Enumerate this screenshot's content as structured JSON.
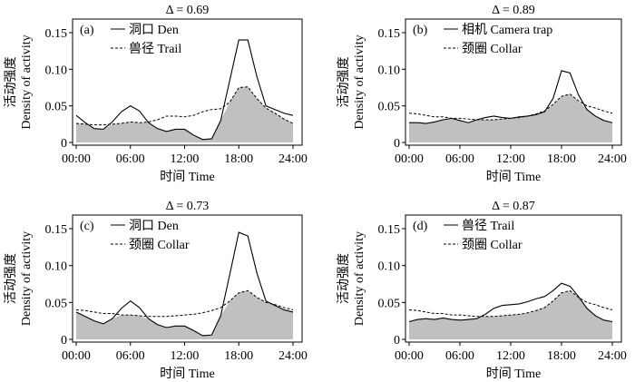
{
  "chart_data": [
    {
      "type": "line",
      "title": "Δ = 0.69",
      "panel_label": "(a)",
      "xlabel": "时间 Time",
      "ylabel_cn": "活动强度",
      "ylabel_en": "Density of activity",
      "xlim": [
        0,
        24
      ],
      "ylim": [
        0,
        0.15
      ],
      "x_ticks": [
        "00:00",
        "06:00",
        "12:00",
        "18:00",
        "24:00"
      ],
      "y_ticks": [
        "0",
        "0.05",
        "0.10",
        "0.15"
      ],
      "legend_placement": "top-left",
      "overlap_fill": "#c0c0c0",
      "x": [
        0,
        1,
        2,
        3,
        4,
        5,
        6,
        7,
        8,
        9,
        10,
        11,
        12,
        13,
        14,
        15,
        16,
        17,
        18,
        19,
        20,
        21,
        22,
        23,
        24
      ],
      "series": [
        {
          "name": "洞口 Den",
          "style": "solid",
          "values": [
            0.037,
            0.027,
            0.019,
            0.018,
            0.028,
            0.042,
            0.05,
            0.043,
            0.027,
            0.019,
            0.015,
            0.018,
            0.018,
            0.01,
            0.004,
            0.005,
            0.03,
            0.085,
            0.14,
            0.14,
            0.09,
            0.05,
            0.045,
            0.04,
            0.037
          ]
        },
        {
          "name": "兽径 Trail",
          "style": "dashed",
          "values": [
            0.026,
            0.025,
            0.024,
            0.024,
            0.025,
            0.026,
            0.028,
            0.027,
            0.028,
            0.031,
            0.036,
            0.036,
            0.035,
            0.037,
            0.042,
            0.045,
            0.046,
            0.055,
            0.075,
            0.076,
            0.06,
            0.047,
            0.04,
            0.032,
            0.026
          ]
        }
      ]
    },
    {
      "type": "line",
      "title": "Δ = 0.89",
      "panel_label": "(b)",
      "xlabel": "时间 Time",
      "ylabel_cn": "活动强度",
      "ylabel_en": "Density of activity",
      "xlim": [
        0,
        24
      ],
      "ylim": [
        0,
        0.15
      ],
      "x_ticks": [
        "00:00",
        "06:00",
        "12:00",
        "18:00",
        "24:00"
      ],
      "y_ticks": [
        "0",
        "0.05",
        "0.10",
        "0.15"
      ],
      "legend_placement": "top-left",
      "overlap_fill": "#c0c0c0",
      "x": [
        0,
        1,
        2,
        3,
        4,
        5,
        6,
        7,
        8,
        9,
        10,
        11,
        12,
        13,
        14,
        15,
        16,
        17,
        18,
        19,
        20,
        21,
        22,
        23,
        24
      ],
      "series": [
        {
          "name": "相机 Camera trap",
          "style": "solid",
          "values": [
            0.027,
            0.027,
            0.026,
            0.028,
            0.031,
            0.033,
            0.03,
            0.027,
            0.031,
            0.034,
            0.036,
            0.034,
            0.033,
            0.035,
            0.036,
            0.038,
            0.042,
            0.06,
            0.098,
            0.095,
            0.065,
            0.045,
            0.036,
            0.03,
            0.027
          ]
        },
        {
          "name": "颈圈 Collar",
          "style": "dashed",
          "values": [
            0.04,
            0.039,
            0.037,
            0.035,
            0.035,
            0.033,
            0.033,
            0.032,
            0.031,
            0.031,
            0.031,
            0.032,
            0.033,
            0.034,
            0.036,
            0.039,
            0.043,
            0.052,
            0.063,
            0.066,
            0.057,
            0.05,
            0.047,
            0.043,
            0.04
          ]
        }
      ]
    },
    {
      "type": "line",
      "title": "Δ = 0.73",
      "panel_label": "(c)",
      "xlabel": "时间 Time",
      "ylabel_cn": "活动强度",
      "ylabel_en": "Density of activity",
      "xlim": [
        0,
        24
      ],
      "ylim": [
        0,
        0.15
      ],
      "x_ticks": [
        "00:00",
        "06:00",
        "12:00",
        "18:00",
        "24:00"
      ],
      "y_ticks": [
        "0",
        "0.05",
        "0.10",
        "0.15"
      ],
      "legend_placement": "top-left",
      "overlap_fill": "#c0c0c0",
      "x": [
        0,
        1,
        2,
        3,
        4,
        5,
        6,
        7,
        8,
        9,
        10,
        11,
        12,
        13,
        14,
        15,
        16,
        17,
        18,
        19,
        20,
        21,
        22,
        23,
        24
      ],
      "series": [
        {
          "name": "洞口 Den",
          "style": "solid",
          "values": [
            0.037,
            0.031,
            0.025,
            0.021,
            0.028,
            0.042,
            0.052,
            0.043,
            0.028,
            0.02,
            0.016,
            0.018,
            0.018,
            0.012,
            0.005,
            0.006,
            0.032,
            0.088,
            0.145,
            0.14,
            0.09,
            0.052,
            0.046,
            0.04,
            0.037
          ]
        },
        {
          "name": "颈圈 Collar",
          "style": "dashed",
          "values": [
            0.04,
            0.039,
            0.037,
            0.035,
            0.035,
            0.033,
            0.033,
            0.032,
            0.031,
            0.031,
            0.031,
            0.032,
            0.033,
            0.034,
            0.036,
            0.039,
            0.043,
            0.052,
            0.063,
            0.066,
            0.057,
            0.05,
            0.047,
            0.043,
            0.04
          ]
        }
      ]
    },
    {
      "type": "line",
      "title": "Δ = 0.87",
      "panel_label": "(d)",
      "xlabel": "时间 Time",
      "ylabel_cn": "活动强度",
      "ylabel_en": "Density of activity",
      "xlim": [
        0,
        24
      ],
      "ylim": [
        0,
        0.15
      ],
      "x_ticks": [
        "00:00",
        "06:00",
        "12:00",
        "18:00",
        "24:00"
      ],
      "y_ticks": [
        "0",
        "0.05",
        "0.10",
        "0.15"
      ],
      "legend_placement": "top-left",
      "overlap_fill": "#c0c0c0",
      "x": [
        0,
        1,
        2,
        3,
        4,
        5,
        6,
        7,
        8,
        9,
        10,
        11,
        12,
        13,
        14,
        15,
        16,
        17,
        18,
        19,
        20,
        21,
        22,
        23,
        24
      ],
      "series": [
        {
          "name": "兽径 Trail",
          "style": "solid",
          "values": [
            0.024,
            0.027,
            0.028,
            0.027,
            0.029,
            0.027,
            0.026,
            0.027,
            0.028,
            0.034,
            0.042,
            0.046,
            0.047,
            0.048,
            0.051,
            0.055,
            0.058,
            0.066,
            0.076,
            0.072,
            0.058,
            0.042,
            0.032,
            0.026,
            0.024
          ]
        },
        {
          "name": "颈圈 Collar",
          "style": "dashed",
          "values": [
            0.04,
            0.039,
            0.037,
            0.035,
            0.035,
            0.033,
            0.033,
            0.032,
            0.031,
            0.031,
            0.031,
            0.032,
            0.033,
            0.034,
            0.036,
            0.039,
            0.043,
            0.052,
            0.063,
            0.066,
            0.057,
            0.05,
            0.047,
            0.043,
            0.04
          ]
        }
      ]
    }
  ]
}
